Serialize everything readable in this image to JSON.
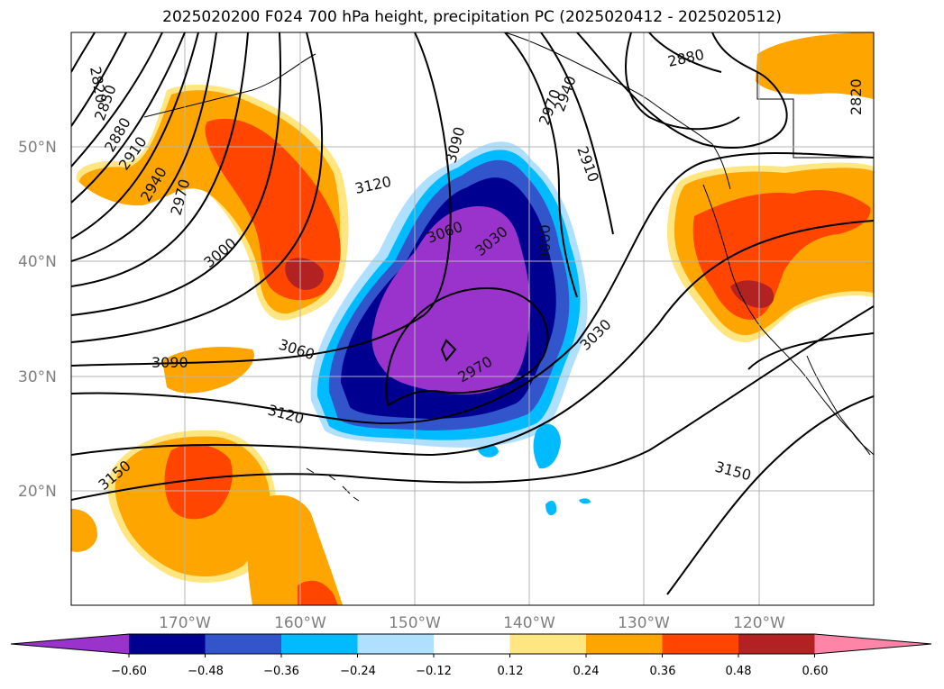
{
  "title": "2025020200 F024 700 hPa height, precipitation PC (2025020412 - 2025020512)",
  "map": {
    "longitude_labels": [
      "170°W",
      "160°W",
      "150°W",
      "140°W",
      "130°W",
      "120°W"
    ],
    "latitude_labels": [
      "50°N",
      "40°N",
      "30°N",
      "20°N"
    ],
    "gridlines": true,
    "contour_color": "#000000",
    "height_contour_labels": [
      "2820",
      "2850",
      "2880",
      "2910",
      "2940",
      "2970",
      "3000",
      "3120",
      "3090",
      "3060",
      "3030",
      "3000",
      "2970",
      "2940",
      "2910",
      "2880",
      "2820",
      "3060",
      "3090",
      "3120",
      "3150",
      "2970",
      "3030",
      "3150"
    ]
  },
  "colorbar": {
    "tick_labels": [
      "−0.60",
      "−0.48",
      "−0.36",
      "−0.24",
      "−0.12",
      "0.12",
      "0.24",
      "0.36",
      "0.48",
      "0.60"
    ],
    "colors": [
      "#9933cc",
      "#000090",
      "#3355cc",
      "#00bbff",
      "#b0e0ff",
      "#ffffff",
      "#ffe680",
      "#ffa500",
      "#ff4500",
      "#b22222",
      "#ff85a8"
    ],
    "extend": "both"
  }
}
